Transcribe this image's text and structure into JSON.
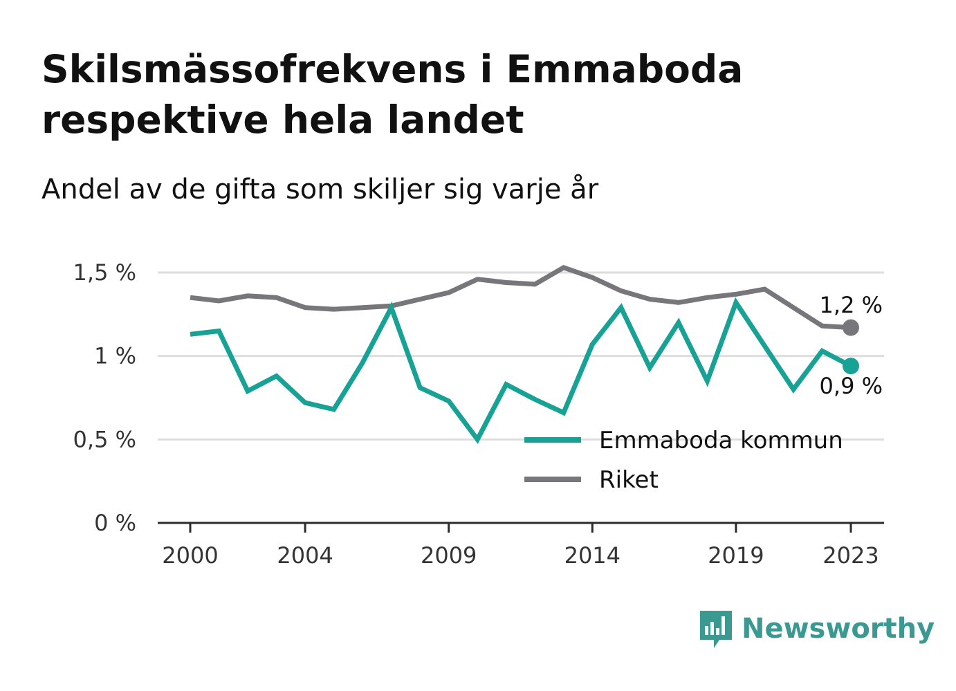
{
  "title": "Skilsmässofrekvens i Emmaboda respektive hela landet",
  "subtitle": "Andel av de gifta som skiljer sig varje år",
  "brand": {
    "name": "Newsworthy",
    "icon": "newsworthy-logo-icon",
    "color": "#3a9a91"
  },
  "chart_data": {
    "type": "line",
    "x": [
      2000,
      2001,
      2002,
      2003,
      2004,
      2005,
      2006,
      2007,
      2008,
      2009,
      2010,
      2011,
      2012,
      2013,
      2014,
      2015,
      2016,
      2017,
      2018,
      2019,
      2020,
      2021,
      2022,
      2023
    ],
    "x_ticks": [
      {
        "value": 2000,
        "label": "2000"
      },
      {
        "value": 2004,
        "label": "2004"
      },
      {
        "value": 2009,
        "label": "2009"
      },
      {
        "value": 2014,
        "label": "2014"
      },
      {
        "value": 2019,
        "label": "2019"
      },
      {
        "value": 2023,
        "label": "2023"
      }
    ],
    "y_ticks": [
      {
        "value": 0,
        "label": "0 %"
      },
      {
        "value": 0.5,
        "label": "0,5 %"
      },
      {
        "value": 1,
        "label": "1 %"
      },
      {
        "value": 1.5,
        "label": "1,5 %"
      }
    ],
    "xlim": [
      2000,
      2023
    ],
    "ylim": [
      0,
      1.5
    ],
    "grid": true,
    "legend_position": "bottom-right",
    "series": [
      {
        "name": "Emmaboda kommun",
        "color": "#18a295",
        "values": [
          1.13,
          1.15,
          0.79,
          0.88,
          0.72,
          0.68,
          0.96,
          1.29,
          0.81,
          0.73,
          0.5,
          0.83,
          0.74,
          0.66,
          1.07,
          1.29,
          0.93,
          1.2,
          0.85,
          1.32,
          1.06,
          0.8,
          1.03,
          0.94
        ],
        "end_label": "0,9 %"
      },
      {
        "name": "Riket",
        "color": "#77767b",
        "values": [
          1.35,
          1.33,
          1.36,
          1.35,
          1.29,
          1.28,
          1.29,
          1.3,
          1.34,
          1.38,
          1.46,
          1.44,
          1.43,
          1.53,
          1.47,
          1.39,
          1.34,
          1.32,
          1.35,
          1.37,
          1.4,
          1.29,
          1.18,
          1.17
        ],
        "end_label": "1,2 %"
      }
    ]
  }
}
